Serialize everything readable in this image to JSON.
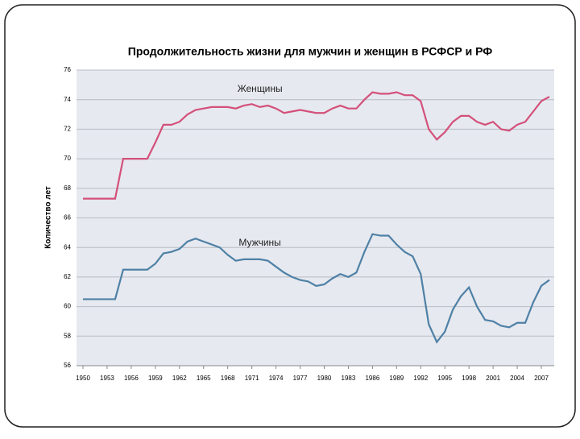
{
  "chart_data": {
    "type": "line",
    "title": "Продолжительность жизни для мужчин и женщин в РСФСР и РФ",
    "y_label": "Количество лет",
    "x": [
      1950,
      1951,
      1952,
      1953,
      1954,
      1955,
      1956,
      1957,
      1958,
      1959,
      1960,
      1961,
      1962,
      1963,
      1964,
      1965,
      1966,
      1967,
      1968,
      1969,
      1970,
      1971,
      1972,
      1973,
      1974,
      1975,
      1976,
      1977,
      1978,
      1979,
      1980,
      1981,
      1982,
      1983,
      1984,
      1985,
      1986,
      1987,
      1988,
      1989,
      1990,
      1991,
      1992,
      1993,
      1994,
      1995,
      1996,
      1997,
      1998,
      1999,
      2000,
      2001,
      2002,
      2003,
      2004,
      2005,
      2006,
      2007,
      2008
    ],
    "series": [
      {
        "name": "Женщины",
        "color": "#d4507a",
        "values": [
          67.3,
          67.3,
          67.3,
          67.3,
          67.3,
          70.0,
          70.0,
          70.0,
          70.0,
          71.1,
          72.3,
          72.3,
          72.5,
          73.0,
          73.3,
          73.4,
          73.5,
          73.5,
          73.5,
          73.4,
          73.6,
          73.7,
          73.5,
          73.6,
          73.4,
          73.1,
          73.2,
          73.3,
          73.2,
          73.1,
          73.1,
          73.4,
          73.6,
          73.4,
          73.4,
          74.0,
          74.5,
          74.4,
          74.4,
          74.5,
          74.3,
          74.3,
          73.9,
          72.0,
          71.3,
          71.8,
          72.5,
          72.9,
          72.9,
          72.5,
          72.3,
          72.5,
          72.0,
          71.9,
          72.3,
          72.5,
          73.2,
          73.9,
          74.2
        ]
      },
      {
        "name": "Мужчины",
        "color": "#4f81a6",
        "values": [
          60.5,
          60.5,
          60.5,
          60.5,
          60.5,
          62.5,
          62.5,
          62.5,
          62.5,
          62.9,
          63.6,
          63.7,
          63.9,
          64.4,
          64.6,
          64.4,
          64.2,
          64.0,
          63.5,
          63.1,
          63.2,
          63.2,
          63.2,
          63.1,
          62.7,
          62.3,
          62.0,
          61.8,
          61.7,
          61.4,
          61.5,
          61.9,
          62.2,
          62.0,
          62.3,
          63.7,
          64.9,
          64.8,
          64.8,
          64.2,
          63.7,
          63.4,
          62.2,
          58.8,
          57.6,
          58.3,
          59.8,
          60.7,
          61.3,
          60.0,
          59.1,
          59.0,
          58.7,
          58.6,
          58.9,
          58.9,
          60.3,
          61.4,
          61.8
        ]
      }
    ],
    "xlim": [
      1950,
      2008
    ],
    "xticks": [
      1950,
      1953,
      1956,
      1959,
      1962,
      1965,
      1968,
      1971,
      1974,
      1977,
      1980,
      1983,
      1986,
      1989,
      1992,
      1995,
      1998,
      2001,
      2004,
      2007
    ],
    "ylim": [
      56,
      76
    ],
    "yticks": [
      56,
      58,
      60,
      62,
      64,
      66,
      68,
      70,
      72,
      74,
      76
    ],
    "grid": true
  }
}
